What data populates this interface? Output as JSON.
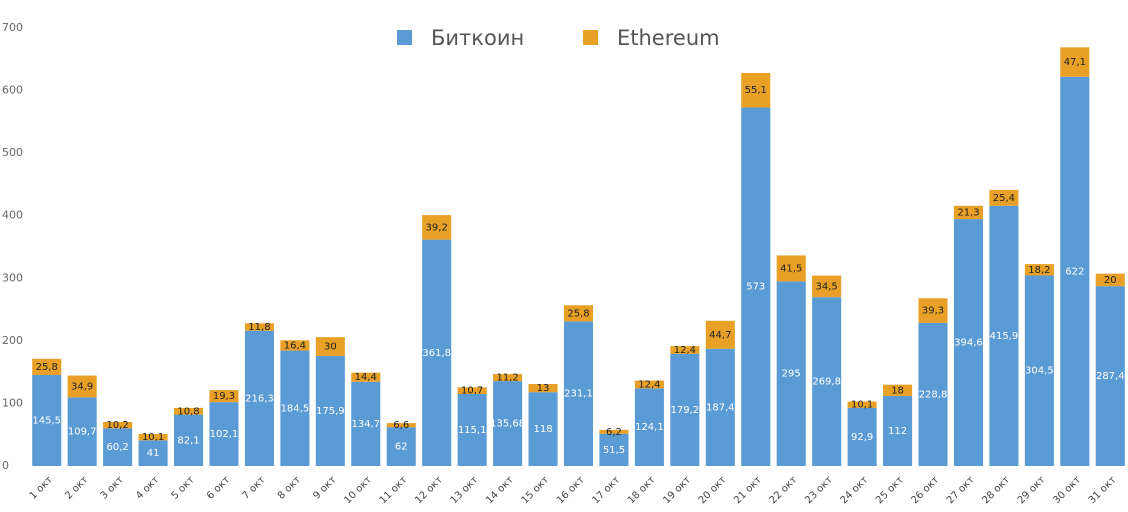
{
  "chart_data": {
    "type": "stacked_bar",
    "categories": [
      "1 окт",
      "2 окт",
      "3 окт",
      "4 окт",
      "5 окт",
      "6 окт",
      "7 окт",
      "8 окт",
      "9 окт",
      "10 окт",
      "11 окт",
      "12 окт",
      "13 окт",
      "14 окт",
      "15 окт",
      "16 окт",
      "17 окт",
      "18 окт",
      "19 окт",
      "20 окт",
      "21 окт",
      "22 окт",
      "23 окт",
      "24 окт",
      "25 окт",
      "26 окт",
      "27 окт",
      "28 окт",
      "29 окт",
      "30 окт",
      "31 окт"
    ],
    "series": [
      {
        "name": "Биткоин",
        "color": "#5b9bd5",
        "values": [
          145.5,
          109.7,
          60.2,
          41,
          82.1,
          102.1,
          216.3,
          184.5,
          175.9,
          134.7,
          62,
          361.8,
          115.1,
          135.68,
          118,
          231.1,
          51.5,
          124.1,
          179.2,
          187.4,
          573,
          295,
          269.8,
          92.9,
          112,
          228.8,
          394.6,
          415.9,
          304.5,
          622,
          287.4
        ],
        "value_labels": [
          "145,5",
          "109,7",
          "60,2",
          "41",
          "82,1",
          "102,1",
          "216,3",
          "184,5",
          "175,9",
          "134,7",
          "62",
          "361,8",
          "115,1",
          "135,68",
          "118",
          "231,1",
          "51,5",
          "124,1",
          "179,2",
          "187,4",
          "573",
          "295",
          "269,8",
          "92,9",
          "112",
          "228,8",
          "394,6",
          "415,9",
          "304,5",
          "622",
          "287,4"
        ]
      },
      {
        "name": "Ethereum",
        "color": "#e8a126",
        "values": [
          25.8,
          34.9,
          10.2,
          10.1,
          10.8,
          19.3,
          11.8,
          16.4,
          30,
          14.4,
          6.6,
          39.2,
          10.7,
          11.2,
          13,
          25.8,
          6.2,
          12.4,
          12.4,
          44.7,
          55.1,
          41.5,
          34.5,
          10.1,
          18,
          39.3,
          21.3,
          25.4,
          18.2,
          47.1,
          20
        ],
        "value_labels": [
          "25,8",
          "34,9",
          "10,2",
          "10,1",
          "10,8",
          "19,3",
          "11,8",
          "16,4",
          "30",
          "14,4",
          "6,6",
          "39,2",
          "10,7",
          "11,2",
          "13",
          "25,8",
          "6,2",
          "12,4",
          "12,4",
          "44,7",
          "55,1",
          "41,5",
          "34,5",
          "10,1",
          "18",
          "39,3",
          "21,3",
          "25,4",
          "18,2",
          "47,1",
          "20"
        ]
      }
    ],
    "ylim": [
      0,
      700
    ],
    "yticks": [
      0,
      100,
      200,
      300,
      400,
      500,
      600,
      700
    ],
    "legend": "top"
  }
}
